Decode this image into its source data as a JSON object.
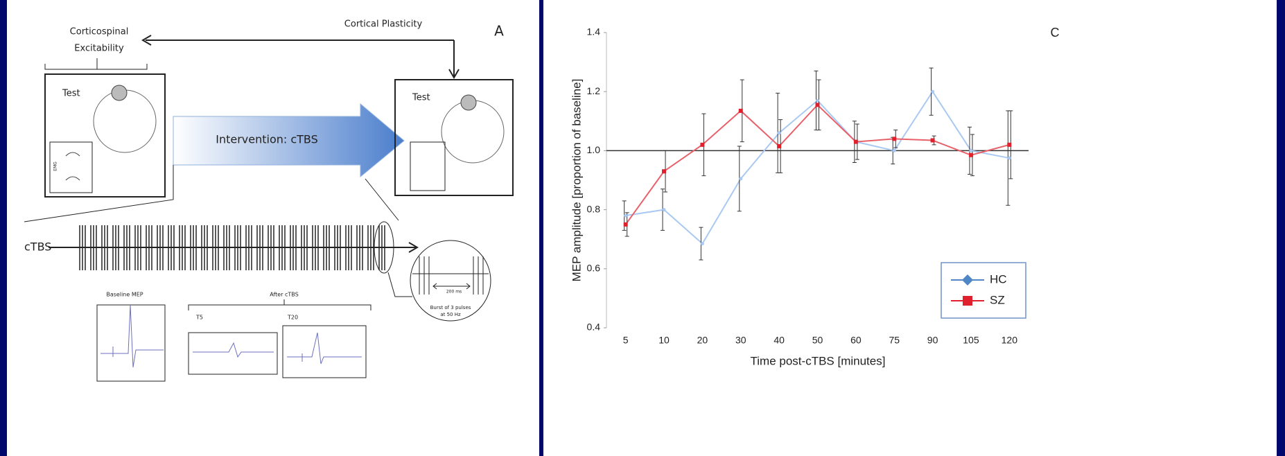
{
  "diagram": {
    "panel": "A",
    "top_left": [
      "Corticospinal",
      "Excitability"
    ],
    "top_right": "Cortical Plasticity",
    "left_box": "Test",
    "right_box": "Test",
    "emg": "EMG",
    "arrow": "Intervention: cTBS",
    "train": "cTBS",
    "baseline": "Baseline MEP",
    "after": "After cTBS",
    "t5": "T5",
    "t20": "T20",
    "interval": "200 ms",
    "burst": [
      "Burst of 3 pulses",
      "at 50 Hz"
    ]
  },
  "chart_data": {
    "type": "line",
    "panel": "C",
    "y_label": "MEP amplitude [proportion of baseline]",
    "x_label": "Time post-cTBS [minutes]",
    "categories": [
      "5",
      "10",
      "20",
      "30",
      "40",
      "50",
      "60",
      "75",
      "90",
      "105",
      "120"
    ],
    "series": [
      {
        "name": "HC",
        "color": "#a9c9f2",
        "marker_color": "#4f86c6",
        "marker": "diamond",
        "values": [
          0.78,
          0.8,
          0.685,
          0.905,
          1.06,
          1.17,
          1.03,
          1.0,
          1.2,
          1.0,
          0.975
        ],
        "errors": [
          0.05,
          0.07,
          0.055,
          0.11,
          0.135,
          0.1,
          0.07,
          0.045,
          0.08,
          0.08,
          0.16
        ]
      },
      {
        "name": "SZ",
        "color": "#e8606a",
        "marker_color": "#e0202c",
        "marker": "square",
        "values": [
          0.75,
          0.93,
          1.02,
          1.135,
          1.015,
          1.155,
          1.03,
          1.04,
          1.035,
          0.985,
          1.02
        ],
        "errors": [
          0.04,
          0.07,
          0.105,
          0.105,
          0.09,
          0.085,
          0.06,
          0.03,
          0.015,
          0.07,
          0.115
        ]
      }
    ],
    "ylim": [
      0.4,
      1.4
    ],
    "yticks": [
      0.4,
      0.6,
      0.8,
      {
        "value": 1,
        "label": "1.0"
      },
      1.2,
      1.4
    ],
    "reference_line": 1,
    "legend": "lower right"
  }
}
